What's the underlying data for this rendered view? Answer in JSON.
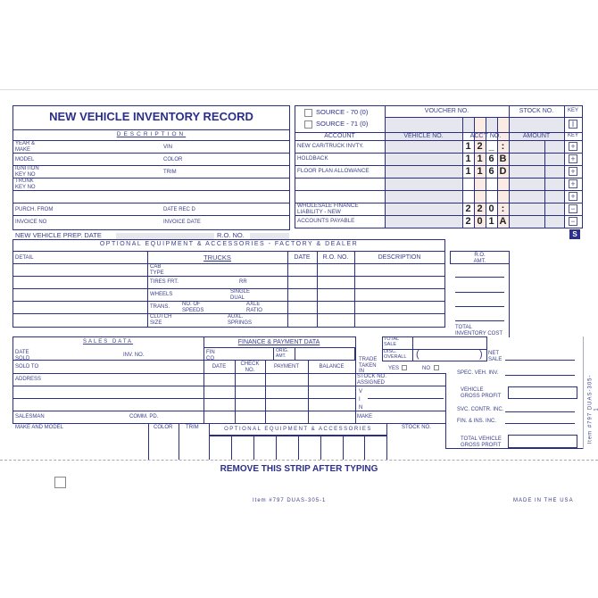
{
  "title": "NEW VEHICLE INVENTORY RECORD",
  "description": {
    "header": "DESCRIPTION",
    "year_make": "YEAR &\nMAKE",
    "vin": "VIN",
    "model": "MODEL",
    "color": "COLOR",
    "ignition": "IGNITION\nKEY NO",
    "trim": "TRIM",
    "trunk": "TRUNK\nKEY NO",
    "purch_from": "PURCH. FROM",
    "date_recd": "DATE REC D",
    "invoice_no": "INVOICE NO",
    "invoice_date": "INVOICE DATE"
  },
  "prep": {
    "date_label": "NEW VEHICLE PREP. DATE",
    "ro_label": "R.O. NO."
  },
  "voucher": {
    "source70": "SOURCE - 70 (0)",
    "source71": "SOURCE - 71 (0)",
    "voucher_no": "VOUCHER NO.",
    "stock_no": "STOCK NO.",
    "key": "KEY",
    "key_symbol": "I",
    "headers": {
      "account": "ACCOUNT",
      "vehicle_no": "VEHICLE NO.",
      "acct_no": "ACC'T NO.",
      "amount": "AMOUNT",
      "key": "KEY"
    },
    "rows": [
      {
        "account": "NEW CAR/TRUCK INVTY.",
        "digits": [
          "1",
          "2",
          "_",
          ":"
        ],
        "key": "+"
      },
      {
        "account": "HOLDBACK",
        "digits": [
          "1",
          "1",
          "6",
          "B"
        ],
        "key": "+"
      },
      {
        "account": "FLOOR PLAN ALLOWANCE",
        "digits": [
          "1",
          "1",
          "6",
          "D"
        ],
        "key": "+"
      },
      {
        "account": "",
        "digits": [
          "",
          "",
          "",
          ""
        ],
        "key": "+"
      },
      {
        "account": "",
        "digits": [
          "",
          "",
          "",
          ""
        ],
        "key": "+"
      },
      {
        "account": "WHOLESALE FINANCE\nLIABILITY - NEW",
        "digits": [
          "2",
          "2",
          "0",
          ":"
        ],
        "key": "−"
      },
      {
        "account": "ACCOUNTS PAYABLE",
        "digits": [
          "2",
          "0",
          "1",
          "A"
        ],
        "key": "−"
      }
    ],
    "s_badge": "S",
    "colors": {
      "ink": "#2b2f7f",
      "voucher_fill": "#e6e6ee",
      "acct_fill": "#fbebe5"
    }
  },
  "options": {
    "header": "OPTIONAL EQUIPMENT & ACCESSORIES - FACTORY & DEALER",
    "detail": "DETAIL",
    "trucks": "TRUCKS",
    "date": "DATE",
    "ro_no": "R.O. NO.",
    "description": "DESCRIPTION",
    "cab_type": "CAB\nTYPE",
    "tires_frt": "TIRES FRT.",
    "rr": "RR",
    "wheels": "WHEELS",
    "single_dual": "SINGLE\nDUAL",
    "trans": "TRANS.",
    "no_speeds": "NO. OF\nSPEEDS",
    "axle_ratio": "AXLE\nRATIO",
    "clutch_size": "CLUTCH\nSIZE",
    "auxl_springs": "AUXL.\nSPRINGS",
    "ro_amt": "R.O.\nAMT.",
    "total_inventory_cost": "TOTAL\nINVENTORY COST"
  },
  "sales": {
    "header": "SALES DATA",
    "date_sold": "DATE\nSOLD",
    "inv_no": "INV. NO.",
    "sold_to": "SOLD TO",
    "address": "ADDRESS",
    "salesman": "SALESMAN",
    "comm_pd": "COMM. PD."
  },
  "finance": {
    "header": "FINANCE & PAYMENT DATA",
    "fin_co": "FIN\nCO",
    "orig_amt": "ORIG.\nAMT.",
    "date": "DATE",
    "check_no": "CHECK\nNO.",
    "payment": "PAYMENT",
    "balance": "BALANCE"
  },
  "trade": {
    "total_sale": "TOTAL\nSALE",
    "disc_overall": "DISC.\nOVERALL",
    "paren_open": "(",
    "paren_close": ")",
    "trade_taken_in": "TRADE\nTAKEN\nIN",
    "yes": "YES",
    "no": "NO",
    "stock_assigned": "STOCK NO.\nASSIGNED",
    "vin_letters": "V\nI\nN",
    "make": "MAKE",
    "net_sale": "NET\nSALE",
    "spec_veh_inv": "SPEC. VEH. INV.",
    "vehicle_gross_profit": "VEHICLE\nGROSS PROFIT",
    "svc_contr_inc": "SVC. CONTR. INC.",
    "fin_ins_inc": "FIN. & INS. INC.",
    "total_vehicle_gross_profit": "TOTAL VEHICLE\nGROSS PROFIT"
  },
  "strip": {
    "make_model": "MAKE AND MODEL",
    "color": "COLOR",
    "trim": "TRIM",
    "optional": "OPTIONAL EQUIPMENT & ACCESSORIES",
    "stock_no": "STOCK NO.",
    "remove": "REMOVE THIS STRIP AFTER TYPING"
  },
  "footer": {
    "item": "Item #797  DUAS-305-1",
    "made_in": "MADE IN THE USA",
    "side_item": "Item #797  DUAS-305-1"
  }
}
